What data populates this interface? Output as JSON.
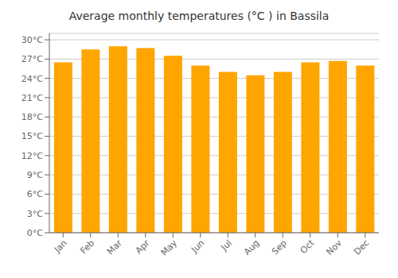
{
  "chart_data": {
    "type": "bar",
    "title": "Average monthly temperatures (°C ) in Bassila",
    "categories": [
      "Jan",
      "Feb",
      "Mar",
      "Apr",
      "May",
      "Jun",
      "Jul",
      "Aug",
      "Sep",
      "Oct",
      "Nov",
      "Dec"
    ],
    "values": [
      26.5,
      28.5,
      29.0,
      28.7,
      27.5,
      26.0,
      25.0,
      24.5,
      25.0,
      26.5,
      26.7,
      26.0
    ],
    "color": "#FFA500",
    "ylim": [
      0,
      31
    ],
    "yticks": [
      {
        "value": 0,
        "label": "0°C"
      },
      {
        "value": 3,
        "label": "3°C"
      },
      {
        "value": 6,
        "label": "6°C"
      },
      {
        "value": 9,
        "label": "9°C"
      },
      {
        "value": 12,
        "label": "12°C"
      },
      {
        "value": 15,
        "label": "15°C"
      },
      {
        "value": 18,
        "label": "18°C"
      },
      {
        "value": 21,
        "label": "21°C"
      },
      {
        "value": 24,
        "label": "24°C"
      },
      {
        "value": 27,
        "label": "27°C"
      },
      {
        "value": 30,
        "label": "30°C"
      }
    ],
    "grid": true
  }
}
